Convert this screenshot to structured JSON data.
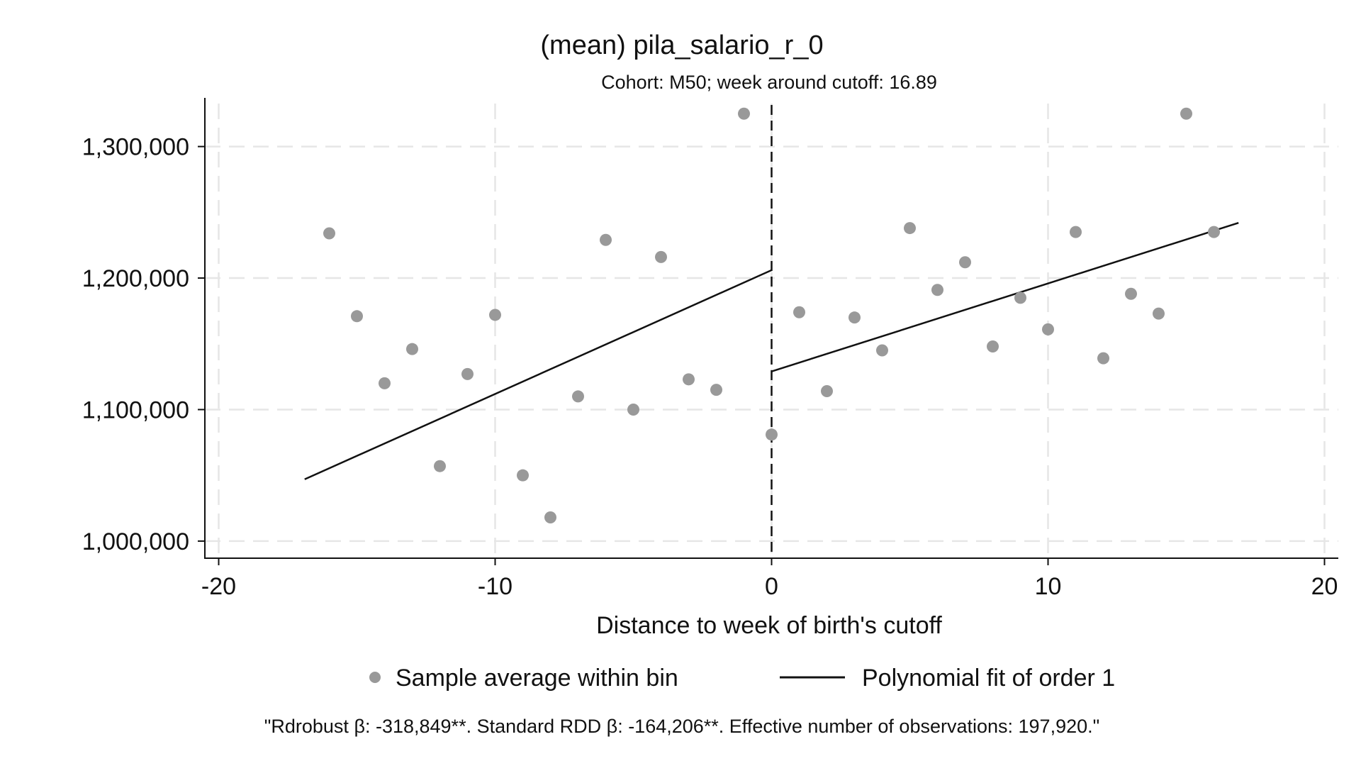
{
  "chart_data": {
    "type": "scatter",
    "title": "(mean) pila_salario_r_0",
    "subtitle": "Cohort: M50; week around cutoff: 16.89",
    "xlabel": "Distance to week of birth's cutoff",
    "ylabel": "",
    "xlim": [
      -20.5,
      20.5
    ],
    "ylim": [
      987000,
      1337000
    ],
    "xticks": [
      -20,
      -10,
      0,
      10,
      20
    ],
    "xtick_labels": [
      "-20",
      "-10",
      "0",
      "10",
      "20"
    ],
    "yticks": [
      1000000,
      1100000,
      1200000,
      1300000
    ],
    "ytick_labels": [
      "1,000,000",
      "1,100,000",
      "1,200,000",
      "1,300,000"
    ],
    "grid": true,
    "cutoff_x": 0,
    "series": [
      {
        "name": "Sample average within bin",
        "kind": "scatter",
        "color": "#999999",
        "points": [
          {
            "x": -16,
            "y": 1234000
          },
          {
            "x": -15,
            "y": 1171000
          },
          {
            "x": -14,
            "y": 1120000
          },
          {
            "x": -13,
            "y": 1146000
          },
          {
            "x": -12,
            "y": 1057000
          },
          {
            "x": -11,
            "y": 1127000
          },
          {
            "x": -10,
            "y": 1172000
          },
          {
            "x": -9,
            "y": 1050000
          },
          {
            "x": -8,
            "y": 1018000
          },
          {
            "x": -7,
            "y": 1110000
          },
          {
            "x": -6,
            "y": 1229000
          },
          {
            "x": -5,
            "y": 1100000
          },
          {
            "x": -4,
            "y": 1216000
          },
          {
            "x": -3,
            "y": 1123000
          },
          {
            "x": -2,
            "y": 1115000
          },
          {
            "x": -1,
            "y": 1325000
          },
          {
            "x": 0,
            "y": 1081000
          },
          {
            "x": 1,
            "y": 1174000
          },
          {
            "x": 2,
            "y": 1114000
          },
          {
            "x": 3,
            "y": 1170000
          },
          {
            "x": 4,
            "y": 1145000
          },
          {
            "x": 5,
            "y": 1238000
          },
          {
            "x": 6,
            "y": 1191000
          },
          {
            "x": 7,
            "y": 1212000
          },
          {
            "x": 8,
            "y": 1148000
          },
          {
            "x": 9,
            "y": 1185000
          },
          {
            "x": 10,
            "y": 1161000
          },
          {
            "x": 11,
            "y": 1235000
          },
          {
            "x": 12,
            "y": 1139000
          },
          {
            "x": 13,
            "y": 1188000
          },
          {
            "x": 14,
            "y": 1173000
          },
          {
            "x": 15,
            "y": 1325000
          },
          {
            "x": 16,
            "y": 1235000
          }
        ]
      },
      {
        "name": "Polynomial fit of order 1",
        "kind": "line",
        "color": "#111111",
        "segments": [
          [
            {
              "x": -16.89,
              "y": 1047000
            },
            {
              "x": 0,
              "y": 1206000
            }
          ],
          [
            {
              "x": 0,
              "y": 1129000
            },
            {
              "x": 16.89,
              "y": 1242000
            }
          ]
        ]
      }
    ],
    "legend": {
      "position": "bottom",
      "entries": [
        "Sample average within bin",
        "Polynomial fit of order 1"
      ]
    },
    "note": "\"Rdrobust β: -318,849**. Standard RDD β: -164,206**. Effective number of observations: 197,920.\""
  }
}
